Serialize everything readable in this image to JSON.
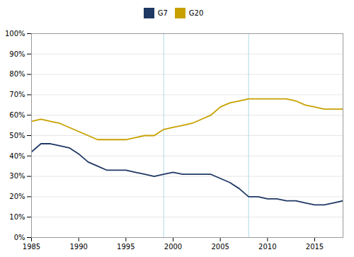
{
  "chart_data": {
    "type": "line",
    "x": [
      1985,
      1986,
      1987,
      1988,
      1989,
      1990,
      1991,
      1992,
      1993,
      1994,
      1995,
      1996,
      1997,
      1998,
      1999,
      2000,
      2001,
      2002,
      2003,
      2004,
      2005,
      2006,
      2007,
      2008,
      2009,
      2010,
      2011,
      2012,
      2013,
      2014,
      2015,
      2016,
      2017,
      2018
    ],
    "series": [
      {
        "name": "G7",
        "color": "#1f3864",
        "values": [
          0.42,
          0.46,
          0.46,
          0.45,
          0.44,
          0.41,
          0.37,
          0.35,
          0.33,
          0.33,
          0.33,
          0.32,
          0.31,
          0.3,
          0.31,
          0.32,
          0.31,
          0.31,
          0.31,
          0.31,
          0.29,
          0.27,
          0.24,
          0.2,
          0.2,
          0.19,
          0.19,
          0.18,
          0.18,
          0.17,
          0.16,
          0.16,
          0.17,
          0.18
        ]
      },
      {
        "name": "G20",
        "color": "#c8a000",
        "values": [
          0.57,
          0.58,
          0.57,
          0.56,
          0.54,
          0.52,
          0.5,
          0.48,
          0.48,
          0.48,
          0.48,
          0.49,
          0.5,
          0.5,
          0.53,
          0.54,
          0.55,
          0.56,
          0.58,
          0.6,
          0.64,
          0.66,
          0.67,
          0.68,
          0.68,
          0.68,
          0.68,
          0.68,
          0.67,
          0.65,
          0.64,
          0.63,
          0.63,
          0.63
        ]
      }
    ],
    "vlines": {
      "values": [
        1999,
        2008
      ],
      "color": "#add8e6"
    },
    "xlim": [
      1985,
      2018
    ],
    "xticks": [
      1985,
      1990,
      1995,
      2000,
      2005,
      2010,
      2015
    ],
    "ylim": [
      0,
      1.0
    ],
    "yticks": [
      {
        "value": 0.0,
        "label": "0%"
      },
      {
        "value": 0.1,
        "label": "10%"
      },
      {
        "value": 0.2,
        "label": "20%"
      },
      {
        "value": 0.3,
        "label": "30%"
      },
      {
        "value": 0.4,
        "label": "40%"
      },
      {
        "value": 0.5,
        "label": "50%"
      },
      {
        "value": 0.6,
        "label": "60%"
      },
      {
        "value": 0.7,
        "label": "70%"
      },
      {
        "value": 0.8,
        "label": "80%"
      },
      {
        "value": 0.9,
        "label": "90%"
      },
      {
        "value": 1.0,
        "label": "100%"
      }
    ],
    "grid": true,
    "legend": "top"
  }
}
